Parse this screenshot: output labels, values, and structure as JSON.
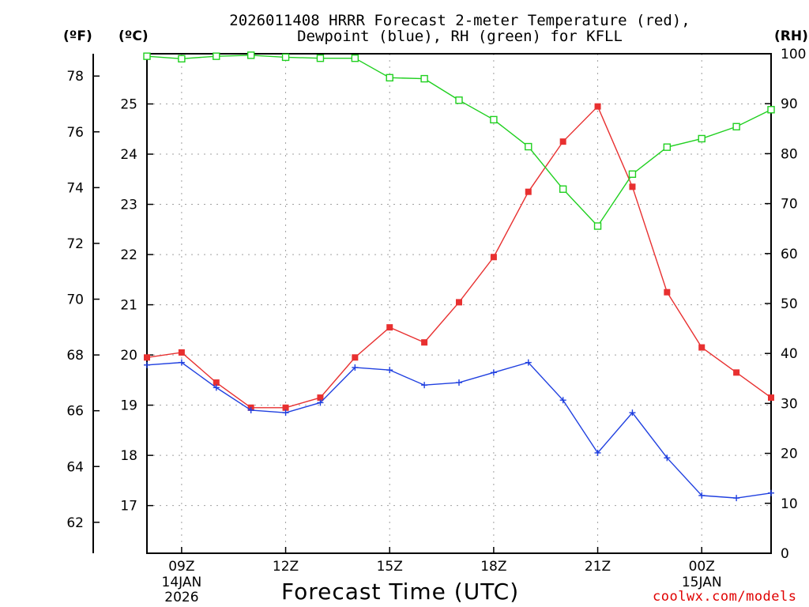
{
  "title_line1": "2026011408 HRRR Forecast 2-meter Temperature (red),",
  "title_line2": "Dewpoint (blue), RH (green) for KFLL",
  "units": {
    "f": "(ºF)",
    "c": "(ºC)",
    "rh": "(RH)"
  },
  "xlabel": "Forecast Time (UTC)",
  "credit": "coolwx.com/models",
  "colors": {
    "temp": "#e83030",
    "dew": "#2040e0",
    "rh": "#20d020"
  },
  "chart_data": {
    "type": "line",
    "title": "2026011408 HRRR Forecast 2-meter Temperature (red), Dewpoint (blue), RH (green) for KFLL",
    "xlabel": "Forecast Time (UTC)",
    "x_hours": [
      8,
      9,
      10,
      11,
      12,
      13,
      14,
      15,
      16,
      17,
      18,
      19,
      20,
      21,
      22,
      23,
      24,
      25,
      26
    ],
    "x_ticks": [
      {
        "hour": 9,
        "label": "09Z",
        "date": "14JAN",
        "year": "2026"
      },
      {
        "hour": 12,
        "label": "12Z"
      },
      {
        "hour": 15,
        "label": "15Z"
      },
      {
        "hour": 18,
        "label": "18Z"
      },
      {
        "hour": 21,
        "label": "21Z"
      },
      {
        "hour": 24,
        "label": "00Z",
        "date": "15JAN"
      }
    ],
    "xlim": [
      8,
      26
    ],
    "y_celsius": {
      "ylim": [
        16.05,
        26.0
      ],
      "ticks": [
        "17",
        "18",
        "19",
        "20",
        "21",
        "22",
        "23",
        "24",
        "25"
      ]
    },
    "y_fahrenheit": {
      "ticks": [
        "62",
        "64",
        "66",
        "68",
        "70",
        "72",
        "74",
        "76",
        "78"
      ]
    },
    "y_rh": {
      "ylim": [
        0,
        100
      ],
      "ticks": [
        "0",
        "10",
        "20",
        "30",
        "40",
        "50",
        "60",
        "70",
        "80",
        "90",
        "100"
      ]
    },
    "grid": true,
    "series": [
      {
        "name": "Temperature",
        "axis": "celsius",
        "color": "#e83030",
        "marker": "filled-square",
        "values": [
          19.95,
          20.05,
          19.45,
          18.95,
          18.95,
          19.15,
          19.95,
          20.55,
          20.25,
          21.05,
          21.95,
          23.25,
          24.25,
          24.95,
          23.35,
          21.25,
          20.15,
          19.65,
          19.15
        ]
      },
      {
        "name": "Dewpoint",
        "axis": "celsius",
        "color": "#2040e0",
        "marker": "plus",
        "values": [
          19.8,
          19.85,
          19.35,
          18.9,
          18.85,
          19.05,
          19.75,
          19.7,
          19.4,
          19.45,
          19.65,
          19.85,
          19.1,
          18.05,
          18.85,
          17.95,
          17.2,
          17.15,
          17.25
        ]
      },
      {
        "name": "RH",
        "axis": "rh",
        "color": "#20d020",
        "marker": "open-square",
        "values": [
          99.5,
          99.0,
          99.5,
          99.7,
          99.3,
          99.1,
          99.1,
          95.2,
          95.0,
          90.7,
          86.8,
          81.4,
          72.9,
          65.5,
          75.9,
          81.3,
          83.0,
          85.4,
          88.8
        ]
      }
    ]
  }
}
